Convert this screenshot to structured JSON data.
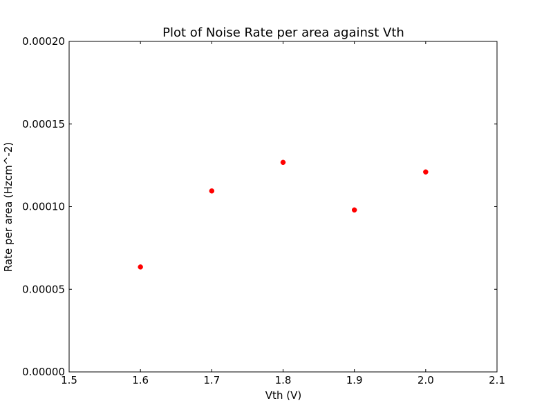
{
  "chart_data": {
    "type": "scatter",
    "title": "Plot of Noise Rate per area against Vth",
    "xlabel": "Vth (V)",
    "ylabel": "Rate per area (Hzcm^-2)",
    "xlim": [
      1.5,
      2.1
    ],
    "ylim": [
      0.0,
      0.0002
    ],
    "xticks": [
      1.5,
      1.6,
      1.7,
      1.8,
      1.9,
      2.0,
      2.1
    ],
    "xtick_labels": [
      "1.5",
      "1.6",
      "1.7",
      "1.8",
      "1.9",
      "2.0",
      "2.1"
    ],
    "yticks": [
      0.0,
      5e-05,
      0.0001,
      0.00015,
      0.0002
    ],
    "ytick_labels": [
      "0.00000",
      "0.00005",
      "0.00010",
      "0.00015",
      "0.00020"
    ],
    "grid": false,
    "series": [
      {
        "x": [
          1.6,
          1.7,
          1.8,
          1.9,
          2.0
        ],
        "y": [
          6.35e-05,
          0.0001095,
          0.0001268,
          9.8e-05,
          0.000121
        ],
        "color": "#ff0000",
        "marker": "circle"
      }
    ]
  }
}
